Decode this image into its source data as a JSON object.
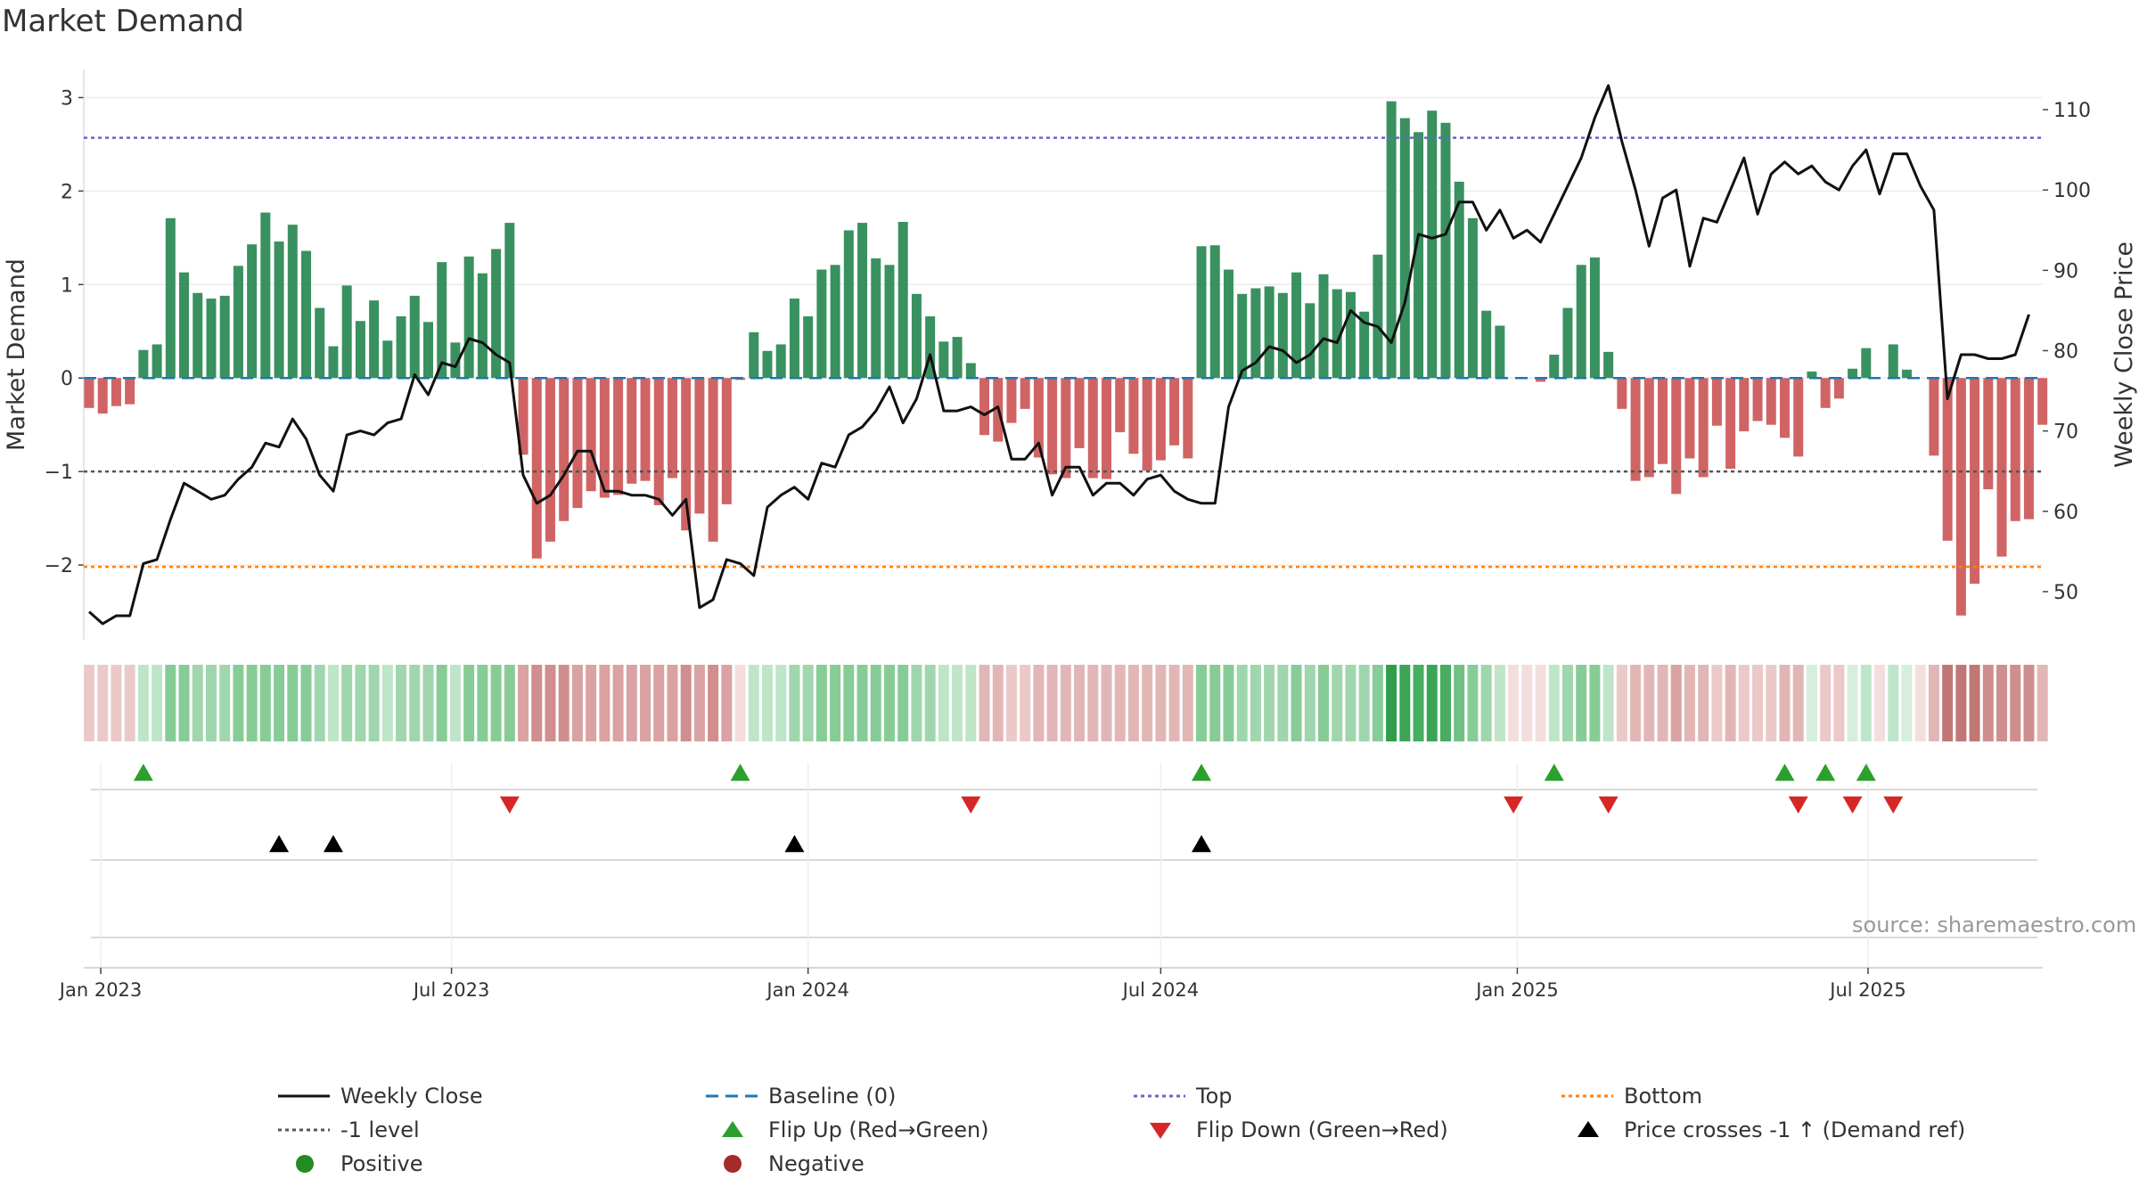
{
  "chart_data": {
    "type": "bar",
    "title": "Market Demand",
    "ylabel": "Market Demand",
    "y2label": "Weekly Close Price",
    "ylim": [
      -2.8,
      3.3
    ],
    "y2lim": [
      44,
      115
    ],
    "yticks": [
      3,
      2,
      1,
      0,
      -1,
      -2
    ],
    "ytick_labels": [
      "3",
      "2",
      "1",
      "0",
      "−1",
      "−2"
    ],
    "y2ticks": [
      110,
      100,
      90,
      80,
      70,
      60,
      50
    ],
    "x_date_range": [
      "2022-12-26",
      "2025-09-08"
    ],
    "xticks": [
      {
        "date": "2023-01-01",
        "label": "Jan 2023"
      },
      {
        "date": "2023-07-01",
        "label": "Jul 2023"
      },
      {
        "date": "2024-01-01",
        "label": "Jan 2024"
      },
      {
        "date": "2024-07-01",
        "label": "Jul 2024"
      },
      {
        "date": "2025-01-01",
        "label": "Jan 2025"
      },
      {
        "date": "2025-07-01",
        "label": "Jul 2025"
      }
    ],
    "reference_lines": {
      "top": 2.57,
      "minus_one": -1,
      "bottom": -2.02,
      "baseline": 0
    },
    "demand": [
      -0.32,
      -0.38,
      -0.3,
      -0.28,
      0.3,
      0.36,
      1.71,
      1.13,
      0.91,
      0.85,
      0.88,
      1.2,
      1.43,
      1.77,
      1.46,
      1.64,
      1.36,
      0.75,
      0.34,
      0.99,
      0.61,
      0.83,
      0.4,
      0.66,
      0.88,
      0.6,
      1.24,
      0.38,
      1.3,
      1.12,
      1.38,
      1.66,
      -0.82,
      -1.93,
      -1.75,
      -1.53,
      -1.39,
      -1.21,
      -1.28,
      -1.25,
      -1.13,
      -1.1,
      -1.36,
      -1.07,
      -1.63,
      -1.45,
      -1.75,
      -1.35,
      -0.02,
      0.49,
      0.29,
      0.36,
      0.85,
      0.66,
      1.16,
      1.21,
      1.58,
      1.66,
      1.28,
      1.21,
      1.67,
      0.9,
      0.66,
      0.39,
      0.44,
      0.16,
      -0.61,
      -0.68,
      -0.48,
      -0.33,
      -0.85,
      -1.03,
      -1.07,
      -0.75,
      -1.07,
      -1.08,
      -0.58,
      -0.81,
      -0.99,
      -0.88,
      -0.72,
      -0.86,
      1.41,
      1.42,
      1.16,
      0.9,
      0.96,
      0.98,
      0.91,
      1.13,
      0.8,
      1.11,
      0.95,
      0.92,
      0.71,
      1.32,
      2.96,
      2.78,
      2.63,
      2.86,
      2.73,
      2.1,
      1.71,
      0.72,
      0.56,
      0.0,
      0.0,
      -0.04,
      0.25,
      0.75,
      1.21,
      1.29,
      0.28,
      -0.33,
      -1.1,
      -1.06,
      -0.92,
      -1.24,
      -0.86,
      -1.06,
      -0.51,
      -0.97,
      -0.57,
      -0.46,
      -0.5,
      -0.64,
      -0.84,
      0.07,
      -0.32,
      -0.22,
      0.1,
      0.32,
      0.0,
      0.36,
      0.09,
      0.0,
      -0.83,
      -1.74,
      -2.54,
      -2.2,
      -1.19,
      -1.91,
      -1.53,
      -1.51,
      -0.5
    ],
    "price": [
      47.5,
      46.0,
      47.0,
      47.0,
      53.5,
      54.0,
      59.0,
      63.5,
      62.5,
      61.5,
      62.0,
      64.0,
      65.5,
      68.5,
      68.0,
      71.5,
      69.0,
      64.5,
      62.5,
      69.5,
      70.0,
      69.5,
      71.0,
      71.5,
      77.0,
      74.5,
      78.5,
      78.0,
      81.5,
      81.0,
      79.5,
      78.5,
      64.5,
      61.0,
      62.0,
      64.5,
      67.5,
      67.5,
      62.5,
      62.5,
      62.0,
      62.0,
      61.5,
      59.5,
      61.5,
      48.0,
      49.0,
      54.0,
      53.5,
      52.0,
      60.5,
      62.0,
      63.0,
      61.5,
      66.0,
      65.5,
      69.5,
      70.5,
      72.5,
      75.5,
      71.0,
      74.0,
      79.5,
      72.5,
      72.5,
      73.0,
      72.0,
      73.0,
      66.5,
      66.5,
      68.5,
      62.0,
      65.5,
      65.5,
      62.0,
      63.5,
      63.5,
      62.0,
      64.0,
      64.5,
      62.5,
      61.5,
      61.0,
      61.0,
      73.0,
      77.5,
      78.5,
      80.5,
      80.0,
      78.5,
      79.5,
      81.5,
      81.0,
      85.0,
      83.5,
      83.0,
      81.0,
      86.0,
      94.5,
      94.0,
      94.5,
      98.5,
      98.5,
      95.0,
      97.5,
      94.0,
      95.0,
      93.5,
      97.0,
      100.5,
      104.0,
      109.0,
      113.0,
      106.0,
      100.0,
      93.0,
      99.0,
      100.0,
      90.5,
      96.5,
      96.0,
      100.0,
      104.0,
      97.0,
      102.0,
      103.5,
      102.0,
      103.0,
      101.0,
      100.0,
      103.0,
      105.0,
      99.5,
      104.5,
      104.5,
      100.5,
      97.5,
      74.0,
      79.5,
      79.5,
      79.0,
      79.0,
      79.5,
      84.5
    ],
    "heatstrip_colors": [
      "#ebc9c9",
      "#ebc9c9",
      "#ebc9c9",
      "#ebc9c9",
      "#bfe5c8",
      "#bfe5c8",
      "#87cc97",
      "#87cc97",
      "#9fd6ad",
      "#9fd6ad",
      "#9fd6ad",
      "#87cc97",
      "#87cc97",
      "#87cc97",
      "#87cc97",
      "#87cc97",
      "#87cc97",
      "#9fd6ad",
      "#bfe5c8",
      "#9fd6ad",
      "#9fd6ad",
      "#9fd6ad",
      "#bfe5c8",
      "#9fd6ad",
      "#9fd6ad",
      "#9fd6ad",
      "#87cc97",
      "#bfe5c8",
      "#87cc97",
      "#87cc97",
      "#87cc97",
      "#87cc97",
      "#daa2a2",
      "#d08e8e",
      "#d08e8e",
      "#d08e8e",
      "#daa2a2",
      "#daa2a2",
      "#daa2a2",
      "#daa2a2",
      "#daa2a2",
      "#daa2a2",
      "#daa2a2",
      "#daa2a2",
      "#d08e8e",
      "#daa2a2",
      "#d08e8e",
      "#daa2a2",
      "#f3dede",
      "#bfe5c8",
      "#bfe5c8",
      "#bfe5c8",
      "#9fd6ad",
      "#9fd6ad",
      "#87cc97",
      "#87cc97",
      "#87cc97",
      "#87cc97",
      "#87cc97",
      "#87cc97",
      "#87cc97",
      "#9fd6ad",
      "#9fd6ad",
      "#bfe5c8",
      "#bfe5c8",
      "#bfe5c8",
      "#e3b6b6",
      "#e3b6b6",
      "#ebc9c9",
      "#ebc9c9",
      "#e3b6b6",
      "#e3b6b6",
      "#e3b6b6",
      "#e3b6b6",
      "#e3b6b6",
      "#e3b6b6",
      "#e3b6b6",
      "#e3b6b6",
      "#e3b6b6",
      "#e3b6b6",
      "#e3b6b6",
      "#e3b6b6",
      "#87cc97",
      "#87cc97",
      "#87cc97",
      "#9fd6ad",
      "#9fd6ad",
      "#9fd6ad",
      "#9fd6ad",
      "#87cc97",
      "#9fd6ad",
      "#87cc97",
      "#9fd6ad",
      "#9fd6ad",
      "#9fd6ad",
      "#87cc97",
      "#2e9e4a",
      "#3aa655",
      "#47ad61",
      "#3aa655",
      "#47ad61",
      "#6fc184",
      "#87cc97",
      "#9fd6ad",
      "#bfe5c8",
      "#f3dede",
      "#f3dede",
      "#f3dede",
      "#bfe5c8",
      "#9fd6ad",
      "#87cc97",
      "#87cc97",
      "#bfe5c8",
      "#ebc9c9",
      "#e3b6b6",
      "#e3b6b6",
      "#e3b6b6",
      "#daa2a2",
      "#e3b6b6",
      "#e3b6b6",
      "#ebc9c9",
      "#e3b6b6",
      "#ebc9c9",
      "#ebc9c9",
      "#ebc9c9",
      "#e3b6b6",
      "#e3b6b6",
      "#d7eedc",
      "#ebc9c9",
      "#ebc9c9",
      "#d7eedc",
      "#bfe5c8",
      "#f3dede",
      "#bfe5c8",
      "#d7eedc",
      "#f3dede",
      "#e3b6b6",
      "#c27777",
      "#c27777",
      "#c27777",
      "#d08e8e",
      "#d08e8e",
      "#d08e8e",
      "#d08e8e",
      "#e3b6b6"
    ],
    "flip_up_weeks": [
      4,
      48,
      82,
      108,
      125,
      128,
      131
    ],
    "flip_down_weeks": [
      31,
      65,
      105,
      112,
      126,
      130,
      133
    ],
    "price_cross_weeks": [
      14,
      18,
      52,
      82
    ],
    "legend": [
      {
        "label": "Weekly Close",
        "symbol": "line-solid",
        "color": "#111111"
      },
      {
        "label": "Baseline (0)",
        "symbol": "line-dash",
        "color": "#1f77b4"
      },
      {
        "label": "Top",
        "symbol": "line-dot",
        "color": "#6666cc"
      },
      {
        "label": "Bottom",
        "symbol": "line-dot",
        "color": "#ff7f0e"
      },
      {
        "label": "-1 level",
        "symbol": "line-dot",
        "color": "#555555"
      },
      {
        "label": "Flip Up (Red→Green)",
        "symbol": "triangle-up",
        "color": "#2ca02c"
      },
      {
        "label": "Flip Down (Green→Red)",
        "symbol": "triangle-down",
        "color": "#d62728"
      },
      {
        "label": "Price crosses -1 ↑ (Demand ref)",
        "symbol": "triangle-up",
        "color": "#000000"
      },
      {
        "label": "Positive",
        "symbol": "circle",
        "color": "#228b22"
      },
      {
        "label": "Negative",
        "symbol": "circle",
        "color": "#a52a2a"
      }
    ],
    "colors": {
      "bar_positive": "#2e8b57",
      "bar_negative": "#cd5c5c",
      "line": "#111111",
      "baseline": "#1f77b4",
      "top": "#6666cc",
      "bottom": "#ff7f0e",
      "minus_one": "#555555",
      "flip_up": "#2ca02c",
      "flip_down": "#d62728",
      "cross": "#000000"
    },
    "source": "source: sharemaestro.com"
  }
}
